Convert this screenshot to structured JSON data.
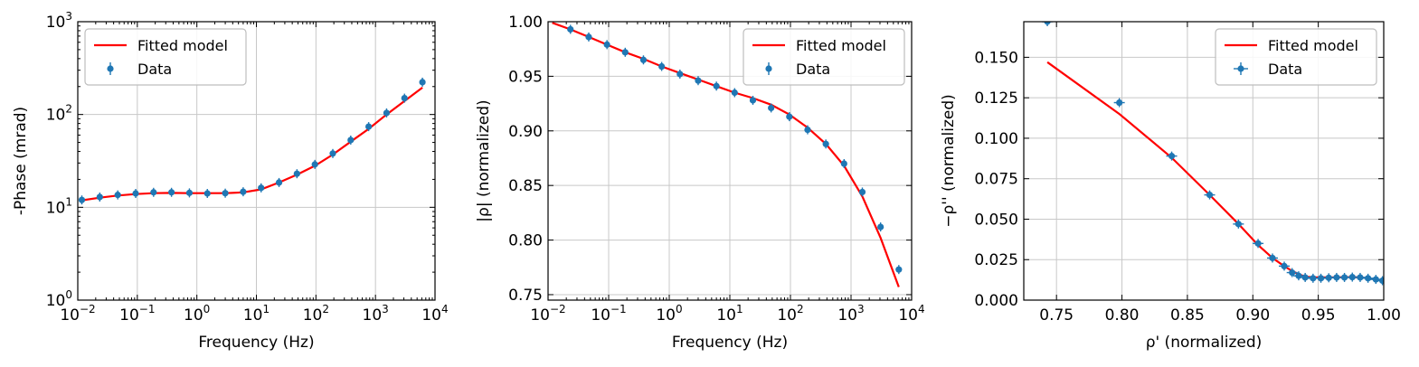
{
  "colors": {
    "model": "#ff0000",
    "data": "#1f77b4",
    "grid": "#c8c8c8"
  },
  "chart_data": [
    {
      "type": "line",
      "xlabel": "Frequency (Hz)",
      "ylabel": "-Phase (mrad)",
      "xscale": "log",
      "yscale": "log",
      "xlim": [
        0.01,
        10000
      ],
      "ylim": [
        1,
        1000
      ],
      "xticks": [
        {
          "value": 0.01,
          "base": "10",
          "exp": "−2"
        },
        {
          "value": 0.1,
          "base": "10",
          "exp": "−1"
        },
        {
          "value": 1,
          "base": "10",
          "exp": "0"
        },
        {
          "value": 10,
          "base": "10",
          "exp": "1"
        },
        {
          "value": 100,
          "base": "10",
          "exp": "2"
        },
        {
          "value": 1000,
          "base": "10",
          "exp": "3"
        },
        {
          "value": 10000,
          "base": "10",
          "exp": "4"
        }
      ],
      "yticks": [
        {
          "value": 1,
          "base": "10",
          "exp": "0"
        },
        {
          "value": 10,
          "base": "10",
          "exp": "1"
        },
        {
          "value": 100,
          "base": "10",
          "exp": "2"
        },
        {
          "value": 1000,
          "base": "10",
          "exp": "3"
        }
      ],
      "grid": true,
      "legend": {
        "position": "upper-left",
        "entries": [
          "Fitted model",
          "Data"
        ]
      },
      "series": [
        {
          "name": "Fitted model",
          "kind": "line",
          "x": [
            0.0117,
            0.0234,
            0.0469,
            0.0938,
            0.1875,
            0.375,
            0.75,
            1.5,
            3,
            6,
            12,
            24,
            48,
            96,
            192,
            384,
            768,
            1536,
            3072,
            6144
          ],
          "y": [
            11.9,
            12.7,
            13.4,
            13.9,
            14.2,
            14.3,
            14.2,
            14.2,
            14.2,
            14.5,
            15.6,
            18.5,
            22.5,
            28,
            37,
            51,
            70,
            100,
            140,
            195
          ]
        },
        {
          "name": "Data",
          "kind": "errorbar",
          "x": [
            0.0117,
            0.0234,
            0.0469,
            0.0938,
            0.1875,
            0.375,
            0.75,
            1.5,
            3,
            6,
            12,
            24,
            48,
            96,
            192,
            384,
            768,
            1536,
            3072,
            6144
          ],
          "y": [
            12.0,
            12.9,
            13.6,
            14.1,
            14.5,
            14.5,
            14.3,
            14.1,
            14.2,
            14.7,
            16.2,
            18.5,
            23,
            29,
            38,
            53,
            74,
            104,
            150,
            223
          ]
        }
      ]
    },
    {
      "type": "line",
      "xlabel": "Frequency (Hz)",
      "ylabel": "|ρ| (normalized)",
      "xscale": "log",
      "yscale": "linear",
      "xlim": [
        0.01,
        10000
      ],
      "ylim": [
        0.745,
        1.0
      ],
      "xticks": [
        {
          "value": 0.01,
          "base": "10",
          "exp": "−2"
        },
        {
          "value": 0.1,
          "base": "10",
          "exp": "−1"
        },
        {
          "value": 1,
          "base": "10",
          "exp": "0"
        },
        {
          "value": 10,
          "base": "10",
          "exp": "1"
        },
        {
          "value": 100,
          "base": "10",
          "exp": "2"
        },
        {
          "value": 1000,
          "base": "10",
          "exp": "3"
        },
        {
          "value": 10000,
          "base": "10",
          "exp": "4"
        }
      ],
      "yticks": [
        {
          "value": 0.75,
          "label": "0.75"
        },
        {
          "value": 0.8,
          "label": "0.80"
        },
        {
          "value": 0.85,
          "label": "0.85"
        },
        {
          "value": 0.9,
          "label": "0.90"
        },
        {
          "value": 0.95,
          "label": "0.95"
        },
        {
          "value": 1.0,
          "label": "1.00"
        }
      ],
      "grid": true,
      "legend": {
        "position": "upper-right",
        "entries": [
          "Fitted model",
          "Data"
        ]
      },
      "series": [
        {
          "name": "Fitted model",
          "kind": "line",
          "x": [
            0.0117,
            0.0234,
            0.0469,
            0.0938,
            0.1875,
            0.375,
            0.75,
            1.5,
            3,
            6,
            12,
            24,
            48,
            96,
            192,
            384,
            768,
            1536,
            3072,
            6144
          ],
          "y": [
            0.999,
            0.993,
            0.986,
            0.979,
            0.972,
            0.966,
            0.959,
            0.953,
            0.947,
            0.941,
            0.935,
            0.93,
            0.924,
            0.915,
            0.903,
            0.888,
            0.868,
            0.84,
            0.802,
            0.757
          ]
        },
        {
          "name": "Data",
          "kind": "errorbar",
          "x": [
            0.0234,
            0.0469,
            0.0938,
            0.1875,
            0.375,
            0.75,
            1.5,
            3,
            6,
            12,
            24,
            48,
            96,
            192,
            384,
            768,
            1536,
            3072,
            6144
          ],
          "y": [
            0.993,
            0.986,
            0.979,
            0.972,
            0.965,
            0.959,
            0.952,
            0.946,
            0.941,
            0.935,
            0.928,
            0.921,
            0.913,
            0.901,
            0.888,
            0.87,
            0.844,
            0.812,
            0.773
          ]
        }
      ]
    },
    {
      "type": "scatter",
      "xlabel": "ρ' (normalized)",
      "ylabel": "−ρ'' (normalized)",
      "xscale": "linear",
      "yscale": "linear",
      "xlim": [
        0.725,
        1.0
      ],
      "ylim": [
        0.0,
        0.172
      ],
      "xticks": [
        {
          "value": 0.75,
          "label": "0.75"
        },
        {
          "value": 0.8,
          "label": "0.80"
        },
        {
          "value": 0.85,
          "label": "0.85"
        },
        {
          "value": 0.9,
          "label": "0.90"
        },
        {
          "value": 0.95,
          "label": "0.95"
        },
        {
          "value": 1.0,
          "label": "1.00"
        }
      ],
      "yticks": [
        {
          "value": 0.0,
          "label": "0.000"
        },
        {
          "value": 0.025,
          "label": "0.025"
        },
        {
          "value": 0.05,
          "label": "0.050"
        },
        {
          "value": 0.075,
          "label": "0.075"
        },
        {
          "value": 0.1,
          "label": "0.100"
        },
        {
          "value": 0.125,
          "label": "0.125"
        },
        {
          "value": 0.15,
          "label": "0.150"
        }
      ],
      "grid": true,
      "legend": {
        "position": "upper-right",
        "entries": [
          "Fitted model",
          "Data"
        ]
      },
      "series": [
        {
          "name": "Fitted model",
          "kind": "line",
          "x": [
            0.743,
            0.798,
            0.838,
            0.867,
            0.889,
            0.904,
            0.915,
            0.924,
            0.93,
            0.935,
            0.94,
            0.946,
            0.952,
            0.958,
            0.964,
            0.97,
            0.976,
            0.982,
            0.988,
            0.994,
            0.999
          ],
          "y": [
            0.147,
            0.115,
            0.088,
            0.065,
            0.047,
            0.034,
            0.026,
            0.021,
            0.018,
            0.016,
            0.0145,
            0.014,
            0.014,
            0.014,
            0.014,
            0.0142,
            0.0142,
            0.014,
            0.0135,
            0.0128,
            0.012
          ]
        },
        {
          "name": "Data",
          "kind": "errorbar",
          "x": [
            0.743,
            0.798,
            0.838,
            0.867,
            0.889,
            0.904,
            0.915,
            0.924,
            0.93,
            0.935,
            0.94,
            0.946,
            0.952,
            0.958,
            0.964,
            0.97,
            0.976,
            0.982,
            0.988,
            0.994,
            0.999
          ],
          "y": [
            0.172,
            0.122,
            0.089,
            0.065,
            0.047,
            0.035,
            0.026,
            0.021,
            0.017,
            0.015,
            0.014,
            0.0135,
            0.0135,
            0.0138,
            0.014,
            0.014,
            0.0142,
            0.014,
            0.0135,
            0.0128,
            0.012
          ]
        }
      ]
    }
  ]
}
